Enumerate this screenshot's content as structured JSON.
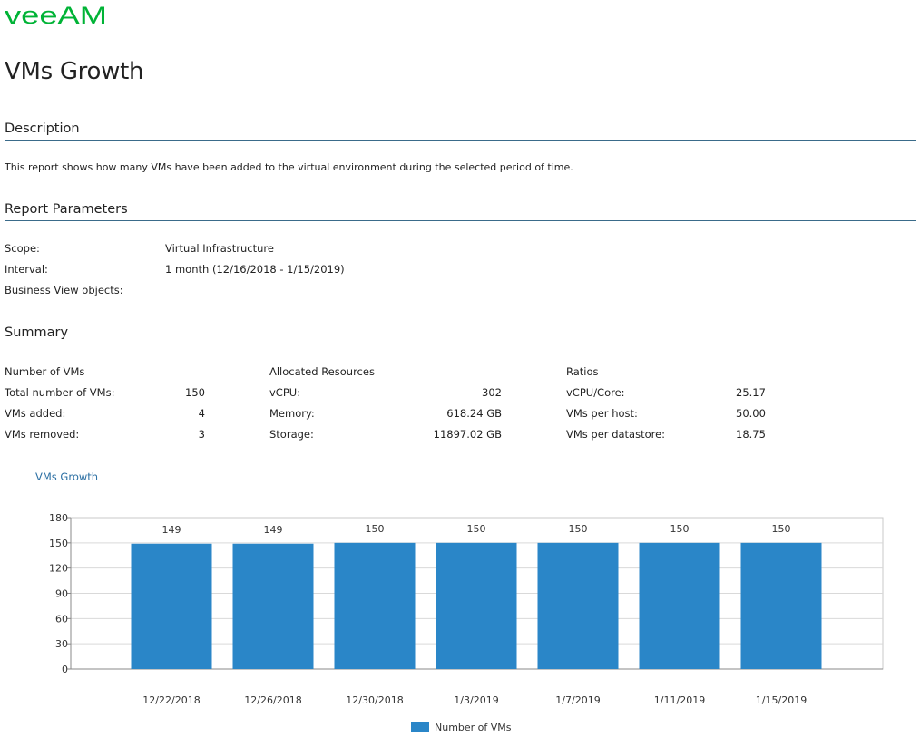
{
  "brand": {
    "logo_text": "VEEAM",
    "color": "#00b336"
  },
  "report_title": "VMs Growth",
  "description": {
    "heading": "Description",
    "text": "This report shows how many VMs have been added to the virtual environment during the selected period of time."
  },
  "parameters": {
    "heading": "Report Parameters",
    "rows": [
      {
        "label": "Scope:",
        "value": "Virtual Infrastructure"
      },
      {
        "label": "Interval:",
        "value": "1 month (12/16/2018 - 1/15/2019)"
      },
      {
        "label": "Business View objects:",
        "value": ""
      }
    ]
  },
  "summary": {
    "heading": "Summary",
    "groups": [
      {
        "title": "Number of VMs",
        "rows": [
          {
            "label": "Total number of VMs:",
            "value": "150"
          },
          {
            "label": "VMs added:",
            "value": "4"
          },
          {
            "label": "VMs removed:",
            "value": "3"
          }
        ]
      },
      {
        "title": "Allocated Resources",
        "rows": [
          {
            "label": "vCPU:",
            "value": "302"
          },
          {
            "label": "Memory:",
            "value": "618.24 GB"
          },
          {
            "label": "Storage:",
            "value": "11897.02 GB"
          }
        ]
      },
      {
        "title": "Ratios",
        "rows": [
          {
            "label": "vCPU/Core:",
            "value": "25.17"
          },
          {
            "label": "VMs per host:",
            "value": "50.00"
          },
          {
            "label": "VMs per datastore:",
            "value": "18.75"
          }
        ]
      }
    ]
  },
  "chart_data": {
    "type": "bar",
    "title": "VMs Growth",
    "categories": [
      "12/22/2018",
      "12/26/2018",
      "12/30/2018",
      "1/3/2019",
      "1/7/2019",
      "1/11/2019",
      "1/15/2019"
    ],
    "series": [
      {
        "name": "Number of VMs",
        "values": [
          149,
          149,
          150,
          150,
          150,
          150,
          150
        ],
        "color": "#2a86c8"
      }
    ],
    "data_labels": [
      "149",
      "149",
      "150",
      "150",
      "150",
      "150",
      "150"
    ],
    "yticks": [
      "0",
      "30",
      "60",
      "90",
      "120",
      "150",
      "180"
    ],
    "ylim": [
      0,
      180
    ],
    "grid": true,
    "legend": "bottom-center",
    "xlabel": "",
    "ylabel": ""
  }
}
